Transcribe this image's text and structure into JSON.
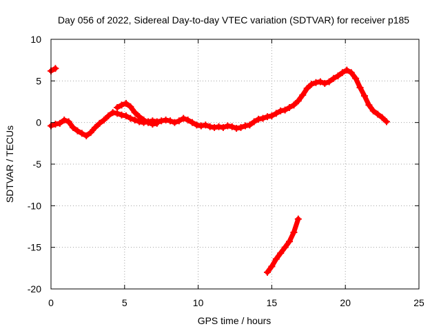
{
  "chart_data": {
    "type": "scatter",
    "title": "Day 056 of 2022, Sidereal Day-to-day VTEC variation (SDTVAR) for receiver p185",
    "xlabel": "GPS time / hours",
    "ylabel": "SDTVAR / TECUs",
    "xlim": [
      0,
      25
    ],
    "ylim": [
      -20,
      10
    ],
    "xticks": [
      0,
      5,
      10,
      15,
      20,
      25
    ],
    "yticks": [
      -20,
      -15,
      -10,
      -5,
      0,
      5,
      10
    ],
    "xtick_labels": [
      "0",
      "5",
      "10",
      "15",
      "20",
      "25"
    ],
    "ytick_labels": [
      "-20",
      "-15",
      "-10",
      "-5",
      "0",
      "5",
      "10"
    ],
    "grid": true,
    "colors": {
      "series": "#ff0000",
      "grid": "#a0a0a0",
      "axis": "#000000"
    },
    "series": [
      {
        "name": "SDTVAR early segment",
        "x": [
          0.0,
          0.3
        ],
        "y": [
          6.2,
          6.5
        ]
      },
      {
        "name": "SDTVAR main",
        "x": [
          0.0,
          0.3,
          0.6,
          0.9,
          1.2,
          1.5,
          1.8,
          2.1,
          2.4,
          2.7,
          3.0,
          3.3,
          3.6,
          3.9,
          4.2,
          4.5,
          4.8,
          5.1,
          5.4,
          5.7,
          6.0,
          6.3,
          6.6,
          6.9,
          7.2,
          7.5,
          7.8,
          8.1,
          8.4,
          8.7,
          9.0,
          9.3,
          9.6,
          9.9,
          10.2,
          10.5,
          10.8,
          11.1,
          11.4,
          11.7,
          12.0,
          12.3,
          12.6,
          12.9,
          13.2,
          13.5,
          13.8,
          14.1,
          14.4,
          14.7,
          15.0,
          15.3,
          15.6,
          15.9,
          16.2,
          16.5,
          16.8,
          17.1,
          17.4,
          17.7,
          18.0,
          18.3,
          18.6,
          18.9,
          19.2,
          19.5,
          19.8,
          20.1,
          20.4,
          20.7,
          21.0,
          21.3,
          21.6,
          21.9,
          22.2,
          22.5,
          22.8
        ],
        "y": [
          -0.4,
          -0.2,
          -0.1,
          0.3,
          0.1,
          -0.6,
          -1.0,
          -1.3,
          -1.6,
          -1.2,
          -0.6,
          -0.1,
          0.3,
          0.8,
          1.2,
          1.1,
          0.9,
          0.8,
          0.5,
          0.3,
          0.1,
          0.0,
          0.1,
          0.2,
          0.1,
          0.2,
          0.3,
          0.2,
          0.0,
          0.2,
          0.5,
          0.3,
          0.0,
          -0.3,
          -0.4,
          -0.3,
          -0.5,
          -0.6,
          -0.5,
          -0.6,
          -0.4,
          -0.5,
          -0.7,
          -0.6,
          -0.4,
          -0.3,
          0.1,
          0.4,
          0.5,
          0.7,
          0.8,
          1.1,
          1.4,
          1.5,
          1.8,
          2.1,
          2.6,
          3.3,
          4.1,
          4.6,
          4.8,
          4.9,
          4.7,
          4.9,
          5.3,
          5.6,
          6.0,
          6.3,
          6.0,
          5.3,
          4.2,
          3.2,
          2.1,
          1.4,
          1.0,
          0.6,
          0.1
        ]
      },
      {
        "name": "SDTVAR upper branch",
        "x": [
          4.5,
          4.8,
          5.1,
          5.4,
          5.7,
          6.0,
          6.3,
          6.6,
          6.9,
          7.2
        ],
        "y": [
          1.8,
          2.1,
          2.3,
          1.9,
          1.2,
          0.7,
          0.3,
          0.0,
          -0.2,
          -0.1
        ]
      },
      {
        "name": "SDTVAR outlier segment",
        "x": [
          14.7,
          15.0,
          15.3,
          15.6,
          15.9,
          16.2,
          16.5,
          16.8
        ],
        "y": [
          -18.0,
          -17.3,
          -16.4,
          -15.7,
          -15.0,
          -14.3,
          -13.2,
          -11.6
        ]
      }
    ]
  }
}
